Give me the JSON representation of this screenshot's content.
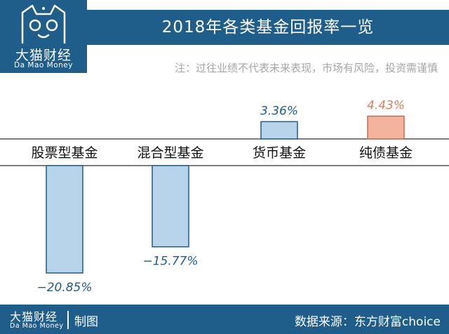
{
  "brand": {
    "name_cn": "大猫财经",
    "name_en": "Da Mao Money"
  },
  "note": "注：过往业绩不代表未来表现，市场有风险，投资需谨慎",
  "footer": {
    "made": "制图",
    "source": "数据来源：东方财富choice"
  },
  "colors": {
    "brand": "#1f5d8a",
    "bar_blue": "#b7d4ea",
    "bar_blue_edge": "#1f5d8a",
    "bar_orange": "#f3b39c",
    "bar_orange_edge": "#c96a4f",
    "label_blue": "#1f5d8a",
    "label_orange": "#d9805f"
  },
  "chart_data": {
    "type": "bar",
    "title": "2018年各类基金回报率一览",
    "categories": [
      "股票型基金",
      "混合型基金",
      "货币基金",
      "纯债基金"
    ],
    "values": [
      -20.85,
      -15.77,
      3.36,
      4.43
    ],
    "data_labels": [
      "−20.85%",
      "−15.77%",
      "3.36%",
      "4.43%"
    ],
    "unit": "%",
    "ylim": [
      -21,
      4.5
    ],
    "grid": false,
    "legend": "none"
  }
}
